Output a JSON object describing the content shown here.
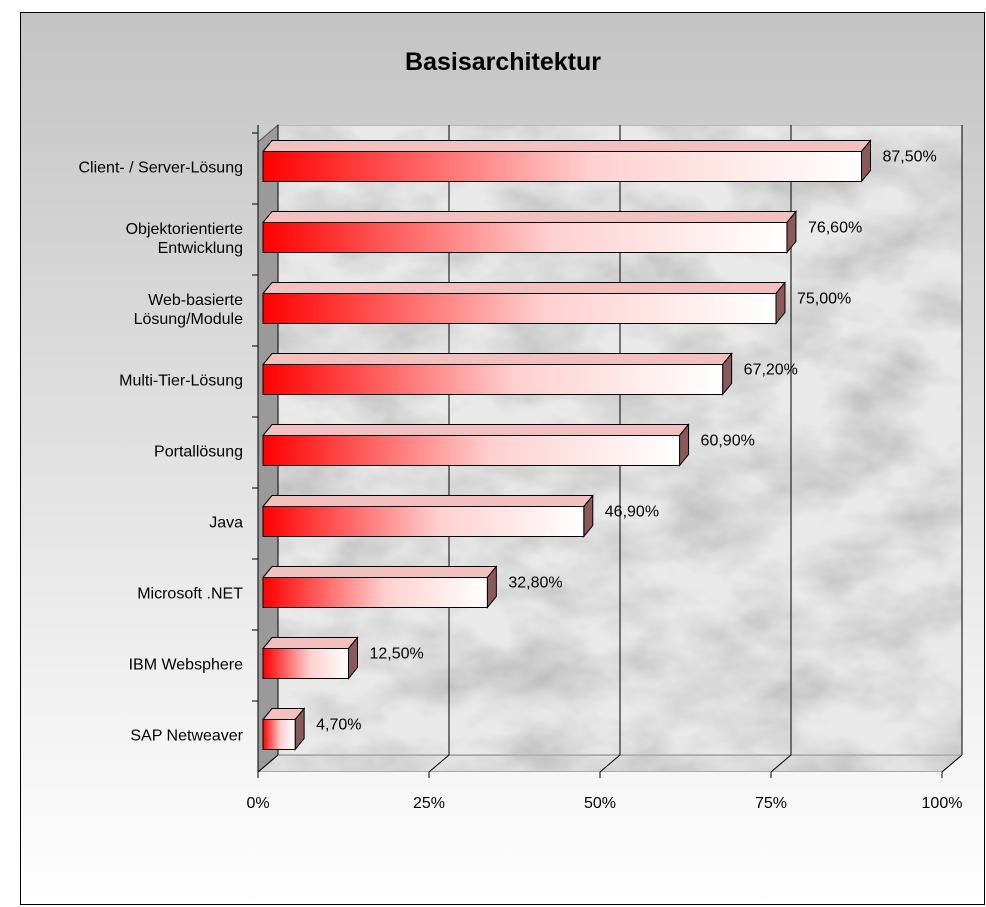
{
  "chart_data": {
    "type": "bar",
    "orientation": "horizontal",
    "title": "Basisarchitektur",
    "categories": [
      "Client- / Server-Lösung",
      "Objektorientierte\nEntwicklung",
      "Web-basierte\nLösung/Module",
      "Multi-Tier-Lösung",
      "Portallösung",
      "Java",
      "Microsoft .NET",
      "IBM Websphere",
      "SAP Netweaver"
    ],
    "values": [
      87.5,
      76.6,
      75,
      67.2,
      60.9,
      46.9,
      32.8,
      12.5,
      4.7
    ],
    "value_labels": [
      "87,50%",
      "76,60%",
      "75,00%",
      "67,20%",
      "60,90%",
      "46,90%",
      "32,80%",
      "12,50%",
      "4,70%"
    ],
    "color": "#ff0000",
    "xlim": [
      0,
      100
    ],
    "xticks": [
      {
        "value": 0,
        "label": "0%"
      },
      {
        "value": 25,
        "label": "25%"
      },
      {
        "value": 50,
        "label": "50%"
      },
      {
        "value": 75,
        "label": "75%"
      },
      {
        "value": 100,
        "label": "100%"
      }
    ],
    "grid": true
  }
}
